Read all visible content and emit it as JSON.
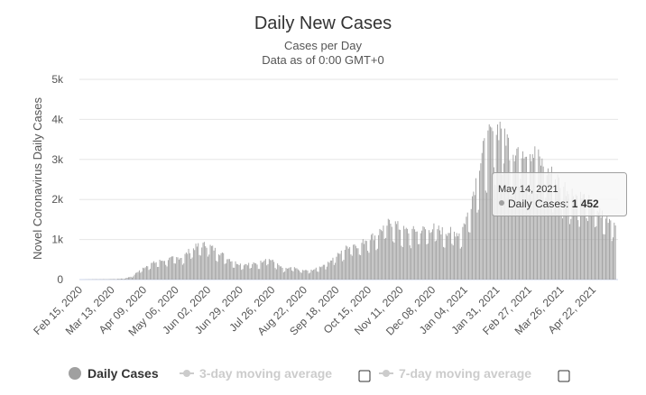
{
  "chart_data": {
    "type": "bar",
    "title": "Daily New Cases",
    "subtitle": [
      "Cases per Day",
      "Data as of 0:00 GMT+0"
    ],
    "ylabel": "Novel Coronavirus Daily Cases",
    "xlabel": "",
    "ylim": [
      0,
      5000
    ],
    "yticks": [
      "0",
      "1k",
      "2k",
      "3k",
      "4k",
      "5k"
    ],
    "xticks": [
      "Feb 15, 2020",
      "Mar 13, 2020",
      "Apr 09, 2020",
      "May 06, 2020",
      "Jun 02, 2020",
      "Jun 29, 2020",
      "Jul 26, 2020",
      "Aug 22, 2020",
      "Sep 18, 2020",
      "Oct 15, 2020",
      "Nov 11, 2020",
      "Dec 08, 2020",
      "Jan 04, 2021",
      "Jan 31, 2021",
      "Feb 27, 2021",
      "Mar 26, 2021",
      "Apr 22, 2021"
    ],
    "x_start": "Feb 15, 2020",
    "x_end": "May 14, 2021",
    "grid": true,
    "legend_position": "bottom",
    "series": [
      {
        "name": "Daily Cases",
        "color": "#a0a0a0",
        "weekly_values": [
          0,
          5,
          8,
          10,
          15,
          25,
          80,
          250,
          380,
          450,
          500,
          540,
          560,
          760,
          860,
          880,
          720,
          600,
          450,
          380,
          400,
          390,
          560,
          420,
          260,
          300,
          240,
          220,
          280,
          400,
          550,
          700,
          900,
          850,
          1050,
          1100,
          1350,
          1450,
          1250,
          1200,
          1250,
          1250,
          1300,
          1200,
          1200,
          1150,
          1700,
          2600,
          3400,
          3700,
          3900,
          3200,
          3300,
          3300,
          3100,
          2800,
          2600,
          2400,
          2200,
          2100,
          2000,
          1800,
          1600,
          1500
        ]
      },
      {
        "name": "3-day moving average",
        "color": "#cccccc",
        "visible": false
      },
      {
        "name": "7-day moving average",
        "color": "#cccccc",
        "visible": false
      }
    ],
    "tooltip": {
      "date": "May 14, 2021",
      "series": "Daily Cases",
      "value": "1 452"
    }
  }
}
